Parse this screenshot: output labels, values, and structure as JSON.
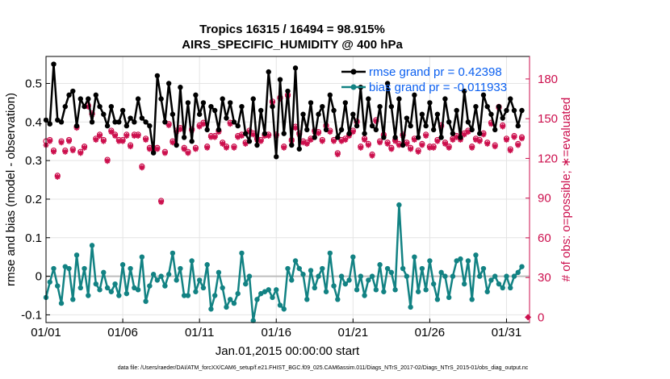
{
  "chart_data": {
    "type": "line",
    "title": "Tropics 16315 / 16494 = 98.915%",
    "subtitle": "AIRS_SPECIFIC_HUMIDITY @ 400 hPa",
    "xlabel": "Jan.01,2015 00:00:00 start",
    "ylabel": "rmse and bias (model - observation)",
    "ylabel_right": "# of obs: o=possible; ∗=evaluated",
    "xlim": [
      0,
      31.5
    ],
    "ylim": [
      -0.12,
      0.57
    ],
    "ylim_right": [
      -4,
      197
    ],
    "x_ticks": [
      0,
      5,
      10,
      15,
      20,
      25,
      30
    ],
    "x_tick_labels": [
      "01/01",
      "01/06",
      "01/11",
      "01/16",
      "01/21",
      "01/26",
      "01/31"
    ],
    "y_ticks": [
      -0.1,
      0,
      0.1,
      0.2,
      0.3,
      0.4,
      0.5
    ],
    "y_tick_labels": [
      "-0.1",
      "0",
      "0.1",
      "0.2",
      "0.3",
      "0.4",
      "0.5"
    ],
    "y_ticks_right": [
      0,
      30,
      60,
      90,
      120,
      150,
      180
    ],
    "y_tick_labels_right": [
      "0",
      "30",
      "60",
      "90",
      "120",
      "150",
      "180"
    ],
    "legend_position": "top-right",
    "colors": {
      "rmse": "#000000",
      "bias": "#128283",
      "counts": "#cc0f4d",
      "zero_line": "#bdbdbd"
    },
    "series": [
      {
        "name": "rmse",
        "legend": "rmse grand pr = 0.42398",
        "x": [
          0,
          0.25,
          0.5,
          0.75,
          1,
          1.25,
          1.5,
          1.75,
          2,
          2.25,
          2.5,
          2.75,
          3,
          3.25,
          3.5,
          3.75,
          4,
          4.25,
          4.5,
          4.75,
          5,
          5.25,
          5.5,
          5.75,
          6,
          6.25,
          6.5,
          6.75,
          7,
          7.25,
          7.5,
          7.75,
          8,
          8.25,
          8.5,
          8.75,
          9,
          9.25,
          9.5,
          9.75,
          10,
          10.25,
          10.5,
          10.75,
          11,
          11.25,
          11.5,
          11.75,
          12,
          12.25,
          12.5,
          12.75,
          13,
          13.25,
          13.5,
          13.75,
          14,
          14.25,
          14.5,
          14.75,
          15,
          15.25,
          15.5,
          15.75,
          16,
          16.25,
          16.5,
          16.75,
          17,
          17.25,
          17.5,
          17.75,
          18,
          18.25,
          18.5,
          18.75,
          19,
          19.25,
          19.5,
          19.75,
          20,
          20.25,
          20.5,
          20.75,
          21,
          21.25,
          21.5,
          21.75,
          22,
          22.25,
          22.5,
          22.75,
          23,
          23.25,
          23.5,
          23.75,
          24,
          24.25,
          24.5,
          24.75,
          25,
          25.25,
          25.5,
          25.75,
          26,
          26.25,
          26.5,
          26.75,
          27,
          27.25,
          27.5,
          27.75,
          28,
          28.25,
          28.5,
          28.75,
          29,
          29.25,
          29.5,
          29.75,
          30,
          30.25,
          30.5,
          30.75,
          31
        ],
        "values": [
          0.405,
          0.395,
          0.55,
          0.405,
          0.4,
          0.44,
          0.47,
          0.48,
          0.39,
          0.46,
          0.44,
          0.46,
          0.4,
          0.47,
          0.44,
          0.42,
          0.39,
          0.44,
          0.4,
          0.4,
          0.43,
          0.39,
          0.41,
          0.4,
          0.46,
          0.41,
          0.4,
          0.39,
          0.32,
          0.52,
          0.46,
          0.4,
          0.5,
          0.42,
          0.34,
          0.49,
          0.36,
          0.45,
          0.35,
          0.47,
          0.42,
          0.45,
          0.38,
          0.44,
          0.43,
          0.38,
          0.46,
          0.41,
          0.45,
          0.4,
          0.39,
          0.44,
          0.37,
          0.35,
          0.46,
          0.34,
          0.43,
          0.37,
          0.53,
          0.44,
          0.31,
          0.51,
          0.37,
          0.48,
          0.34,
          0.54,
          0.33,
          0.42,
          0.38,
          0.45,
          0.36,
          0.42,
          0.44,
          0.38,
          0.47,
          0.43,
          0.36,
          0.38,
          0.45,
          0.37,
          0.42,
          0.39,
          0.49,
          0.37,
          0.46,
          0.39,
          0.38,
          0.44,
          0.36,
          0.5,
          0.44,
          0.36,
          0.46,
          0.34,
          0.41,
          0.39,
          0.47,
          0.36,
          0.42,
          0.39,
          0.45,
          0.38,
          0.42,
          0.36,
          0.46,
          0.4,
          0.37,
          0.43,
          0.36,
          0.48,
          0.4,
          0.38,
          0.44,
          0.37,
          0.47,
          0.44,
          0.42,
          0.38,
          0.44,
          0.41,
          0.43,
          0.46,
          0.43,
          0.39,
          0.43
        ]
      },
      {
        "name": "bias",
        "legend": "bias grand pr = -0.011933",
        "x": [
          0,
          0.25,
          0.5,
          0.75,
          1,
          1.25,
          1.5,
          1.75,
          2,
          2.25,
          2.5,
          2.75,
          3,
          3.25,
          3.5,
          3.75,
          4,
          4.25,
          4.5,
          4.75,
          5,
          5.25,
          5.5,
          5.75,
          6,
          6.25,
          6.5,
          6.75,
          7,
          7.25,
          7.5,
          7.75,
          8,
          8.25,
          8.5,
          8.75,
          9,
          9.25,
          9.5,
          9.75,
          10,
          10.25,
          10.5,
          10.75,
          11,
          11.25,
          11.5,
          11.75,
          12,
          12.25,
          12.5,
          12.75,
          13,
          13.25,
          13.5,
          13.75,
          14,
          14.25,
          14.5,
          14.75,
          15,
          15.25,
          15.5,
          15.75,
          16,
          16.25,
          16.5,
          16.75,
          17,
          17.25,
          17.5,
          17.75,
          18,
          18.25,
          18.5,
          18.75,
          19,
          19.25,
          19.5,
          19.75,
          20,
          20.25,
          20.5,
          20.75,
          21,
          21.25,
          21.5,
          21.75,
          22,
          22.25,
          22.5,
          22.75,
          23,
          23.25,
          23.5,
          23.75,
          24,
          24.25,
          24.5,
          24.75,
          25,
          25.25,
          25.5,
          25.75,
          26,
          26.25,
          26.5,
          26.75,
          27,
          27.25,
          27.5,
          27.75,
          28,
          28.25,
          28.5,
          28.75,
          29,
          29.25,
          29.5,
          29.75,
          30,
          30.25,
          30.5,
          30.75,
          31
        ],
        "values": [
          -0.055,
          -0.015,
          0.02,
          -0.025,
          -0.07,
          0.025,
          0.02,
          -0.06,
          0.055,
          -0.03,
          0.02,
          -0.05,
          0.08,
          -0.02,
          -0.035,
          0.01,
          -0.03,
          -0.04,
          -0.02,
          -0.05,
          0.03,
          -0.045,
          0.02,
          -0.03,
          -0.035,
          0.05,
          -0.065,
          -0.025,
          0.005,
          -0.01,
          0.0,
          -0.025,
          0.005,
          0.06,
          -0.01,
          0.02,
          -0.05,
          -0.05,
          0.04,
          -0.04,
          -0.01,
          -0.03,
          0.03,
          -0.085,
          -0.05,
          0.01,
          -0.03,
          -0.08,
          -0.06,
          -0.07,
          -0.045,
          0.06,
          -0.02,
          0.0,
          -0.115,
          -0.06,
          -0.045,
          -0.04,
          -0.035,
          -0.055,
          -0.035,
          -0.075,
          -0.085,
          0.02,
          -0.01,
          0.04,
          0.02,
          0.005,
          -0.06,
          0.015,
          -0.03,
          0.0,
          0.02,
          -0.04,
          0.06,
          -0.025,
          -0.06,
          0.0,
          -0.02,
          -0.01,
          0.05,
          -0.035,
          0.0,
          -0.05,
          -0.01,
          0.0,
          -0.035,
          0.03,
          -0.04,
          0.02,
          0.01,
          -0.035,
          0.185,
          0.02,
          0.0,
          -0.08,
          0.05,
          -0.04,
          0.02,
          -0.035,
          0.04,
          -0.02,
          -0.06,
          0.01,
          0.0,
          -0.055,
          0.0,
          0.04,
          0.045,
          -0.02,
          0.04,
          -0.06,
          0.055,
          0.0,
          0.02,
          -0.04,
          -0.01,
          0.0,
          -0.02,
          -0.03,
          0.0,
          -0.03,
          0.0,
          0.01,
          0.025
        ]
      },
      {
        "name": "obs_evaluated",
        "axis": "right",
        "marker": "asterisk",
        "x": [
          0,
          0.25,
          0.5,
          0.75,
          1,
          1.25,
          1.5,
          1.75,
          2,
          2.25,
          2.5,
          2.75,
          3,
          3.25,
          3.5,
          3.75,
          4,
          4.25,
          4.5,
          4.75,
          5,
          5.25,
          5.5,
          5.75,
          6,
          6.25,
          6.5,
          6.75,
          7,
          7.25,
          7.5,
          7.75,
          8,
          8.25,
          8.5,
          8.75,
          9,
          9.25,
          9.5,
          9.75,
          10,
          10.25,
          10.5,
          10.75,
          11,
          11.25,
          11.5,
          11.75,
          12,
          12.25,
          12.5,
          12.75,
          13,
          13.25,
          13.5,
          13.75,
          14,
          14.25,
          14.5,
          14.75,
          15,
          15.25,
          15.5,
          15.75,
          16,
          16.25,
          16.5,
          16.75,
          17,
          17.25,
          17.5,
          17.75,
          18,
          18.25,
          18.5,
          18.75,
          19,
          19.25,
          19.5,
          19.75,
          20,
          20.25,
          20.5,
          20.75,
          21,
          21.25,
          21.5,
          21.75,
          22,
          22.25,
          22.5,
          22.75,
          23,
          23.25,
          23.5,
          23.75,
          24,
          24.25,
          24.5,
          24.75,
          25,
          25.25,
          25.5,
          25.75,
          26,
          26.25,
          26.5,
          26.75,
          27,
          27.25,
          27.5,
          27.75,
          28,
          28.25,
          28.5,
          28.75,
          29,
          29.25,
          29.5,
          29.75,
          30,
          30.25,
          30.5,
          30.75,
          31
        ],
        "values": [
          130,
          133,
          125,
          106,
          132,
          125,
          133,
          126,
          143,
          124,
          128,
          159,
          153,
          134,
          137,
          133,
          118,
          140,
          137,
          133,
          133,
          137,
          129,
          137,
          137,
          113,
          134,
          127,
          127,
          127,
          87,
          124,
          145,
          132,
          140,
          142,
          127,
          124,
          141,
          127,
          144,
          146,
          128,
          136,
          136,
          140,
          131,
          128,
          146,
          128,
          136,
          137,
          131,
          140,
          138,
          134,
          133,
          137,
          137,
          162,
          137,
          165,
          128,
          167,
          133,
          143,
          138,
          132,
          131,
          134,
          140,
          139,
          133,
          144,
          140,
          133,
          123,
          133,
          134,
          137,
          140,
          147,
          128,
          134,
          130,
          122,
          148,
          132,
          137,
          131,
          127,
          133,
          130,
          137,
          131,
          127,
          134,
          125,
          130,
          137,
          128,
          128,
          133,
          144,
          131,
          128,
          134,
          136,
          134,
          138,
          140,
          128,
          134,
          133,
          138,
          131,
          146,
          129,
          158,
          144,
          134,
          126,
          136,
          130,
          135
        ]
      },
      {
        "name": "obs_possible",
        "axis": "right",
        "marker": "circle",
        "x": [
          0,
          0.25,
          0.5,
          0.75,
          1,
          1.25,
          1.5,
          1.75,
          2,
          2.25,
          2.5,
          2.75,
          3,
          3.25,
          3.5,
          3.75,
          4,
          4.25,
          4.5,
          4.75,
          5,
          5.25,
          5.5,
          5.75,
          6,
          6.25,
          6.5,
          6.75,
          7,
          7.25,
          7.5,
          7.75,
          8,
          8.25,
          8.5,
          8.75,
          9,
          9.25,
          9.5,
          9.75,
          10,
          10.25,
          10.5,
          10.75,
          11,
          11.25,
          11.5,
          11.75,
          12,
          12.25,
          12.5,
          12.75,
          13,
          13.25,
          13.5,
          13.75,
          14,
          14.25,
          14.5,
          14.75,
          15,
          15.25,
          15.5,
          15.75,
          16,
          16.25,
          16.5,
          16.75,
          17,
          17.25,
          17.5,
          17.75,
          18,
          18.25,
          18.5,
          18.75,
          19,
          19.25,
          19.5,
          19.75,
          20,
          20.25,
          20.5,
          20.75,
          21,
          21.25,
          21.5,
          21.75,
          22,
          22.25,
          22.5,
          22.75,
          23,
          23.25,
          23.5,
          23.75,
          24,
          24.25,
          24.5,
          24.75,
          25,
          25.25,
          25.5,
          25.75,
          26,
          26.25,
          26.5,
          26.75,
          27,
          27.25,
          27.5,
          27.75,
          28,
          28.25,
          28.5,
          28.75,
          29,
          29.25,
          29.5,
          29.75,
          30,
          30.25,
          30.5,
          30.75,
          31
        ],
        "values": [
          133,
          134,
          126,
          107,
          133,
          126,
          134,
          127,
          144,
          125,
          129,
          160,
          154,
          135,
          138,
          134,
          119,
          141,
          138,
          134,
          134,
          138,
          130,
          138,
          138,
          114,
          135,
          128,
          128,
          128,
          88,
          125,
          146,
          133,
          141,
          143,
          128,
          125,
          142,
          128,
          145,
          147,
          129,
          137,
          137,
          141,
          132,
          129,
          147,
          129,
          137,
          138,
          132,
          141,
          139,
          135,
          134,
          138,
          138,
          163,
          138,
          166,
          129,
          168,
          134,
          144,
          139,
          133,
          132,
          135,
          141,
          140,
          134,
          145,
          141,
          134,
          124,
          134,
          135,
          138,
          141,
          148,
          129,
          135,
          131,
          123,
          149,
          133,
          138,
          132,
          128,
          134,
          131,
          138,
          132,
          128,
          135,
          126,
          131,
          138,
          129,
          129,
          134,
          145,
          132,
          129,
          135,
          137,
          135,
          139,
          141,
          129,
          135,
          134,
          139,
          132,
          147,
          130,
          159,
          145,
          135,
          127,
          137,
          131,
          136
        ]
      }
    ],
    "right_axis_extra_point": {
      "x": 31.4,
      "value": 0
    }
  },
  "footer": "data file: /Users/raeder/DAI/ATM_forcXX/CAM6_setup/f.e21.FHIST_BGC.f09_025.CAM6assim.011/Diags_NTrS_2017-02/Diags_NTrS_2015-01/obs_diag_output.nc"
}
